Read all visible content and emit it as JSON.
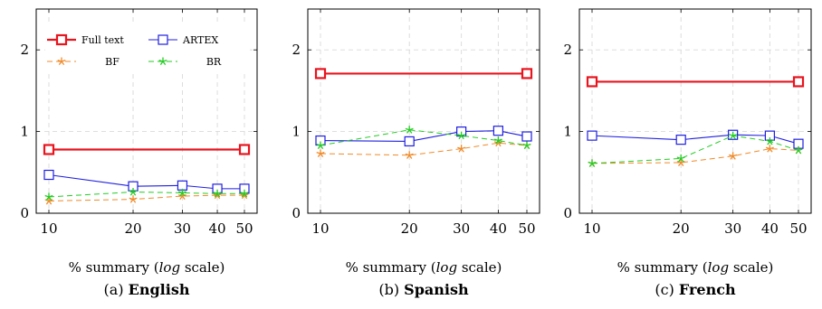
{
  "chart_data": [
    {
      "type": "line",
      "caption_prefix": "(a)",
      "caption_lang": "English",
      "xlabel_pre": "% summary (",
      "xlabel_italic": "log",
      "xlabel_post": " scale)",
      "xscale": "log",
      "x": [
        10,
        20,
        30,
        40,
        50
      ],
      "xticks": [
        "10",
        "20",
        "30",
        "40",
        "50"
      ],
      "ylim": [
        0,
        2.5
      ],
      "yticks": [
        0,
        1,
        2
      ],
      "grid": true,
      "legend": "top-left",
      "series": [
        {
          "name": "Full text",
          "color": "#e8141e",
          "style": "solid-thick",
          "marker": "square",
          "values": [
            0.78,
            null,
            null,
            null,
            0.78
          ]
        },
        {
          "name": "ARTEX",
          "color": "#1f1fe0",
          "style": "solid",
          "marker": "square",
          "values": [
            0.47,
            0.33,
            0.34,
            0.3,
            0.3
          ]
        },
        {
          "name": "BF",
          "color": "#f08a28",
          "style": "dashed",
          "marker": "star",
          "values": [
            0.15,
            0.17,
            0.21,
            0.22,
            0.22
          ]
        },
        {
          "name": "BR",
          "color": "#22cc22",
          "style": "dashed",
          "marker": "star",
          "values": [
            0.2,
            0.26,
            0.25,
            0.24,
            0.24
          ]
        }
      ]
    },
    {
      "type": "line",
      "caption_prefix": "(b)",
      "caption_lang": "Spanish",
      "xlabel_pre": "% summary (",
      "xlabel_italic": "log",
      "xlabel_post": " scale)",
      "xscale": "log",
      "x": [
        10,
        20,
        30,
        40,
        50
      ],
      "xticks": [
        "10",
        "20",
        "30",
        "40",
        "50"
      ],
      "ylim": [
        0,
        2.5
      ],
      "yticks": [
        0,
        1,
        2
      ],
      "grid": true,
      "series": [
        {
          "color": "#e8141e",
          "style": "solid-thick",
          "marker": "square",
          "values": [
            1.71,
            null,
            null,
            null,
            1.71
          ]
        },
        {
          "color": "#1f1fe0",
          "style": "solid",
          "marker": "square",
          "values": [
            0.89,
            0.88,
            1.0,
            1.01,
            0.94
          ]
        },
        {
          "color": "#f08a28",
          "style": "dashed",
          "marker": "star",
          "values": [
            0.73,
            0.71,
            0.79,
            0.86,
            0.83
          ]
        },
        {
          "color": "#22cc22",
          "style": "dashed",
          "marker": "star",
          "values": [
            0.83,
            1.02,
            0.95,
            0.89,
            0.83
          ]
        }
      ]
    },
    {
      "type": "line",
      "caption_prefix": "(c)",
      "caption_lang": "French",
      "xlabel_pre": "% summary (",
      "xlabel_italic": "log",
      "xlabel_post": " scale)",
      "xscale": "log",
      "x": [
        10,
        20,
        30,
        40,
        50
      ],
      "xticks": [
        "10",
        "20",
        "30",
        "40",
        "50"
      ],
      "ylim": [
        0,
        2.5
      ],
      "yticks": [
        0,
        1,
        2
      ],
      "grid": true,
      "series": [
        {
          "color": "#e8141e",
          "style": "solid-thick",
          "marker": "square",
          "values": [
            1.61,
            null,
            null,
            null,
            1.61
          ]
        },
        {
          "color": "#1f1fe0",
          "style": "solid",
          "marker": "square",
          "values": [
            0.95,
            0.9,
            0.96,
            0.95,
            0.85
          ]
        },
        {
          "color": "#f08a28",
          "style": "dashed",
          "marker": "star",
          "values": [
            0.61,
            0.62,
            0.7,
            0.79,
            0.77
          ]
        },
        {
          "color": "#22cc22",
          "style": "dashed",
          "marker": "star",
          "values": [
            0.61,
            0.67,
            0.95,
            0.88,
            0.77
          ]
        }
      ]
    }
  ]
}
